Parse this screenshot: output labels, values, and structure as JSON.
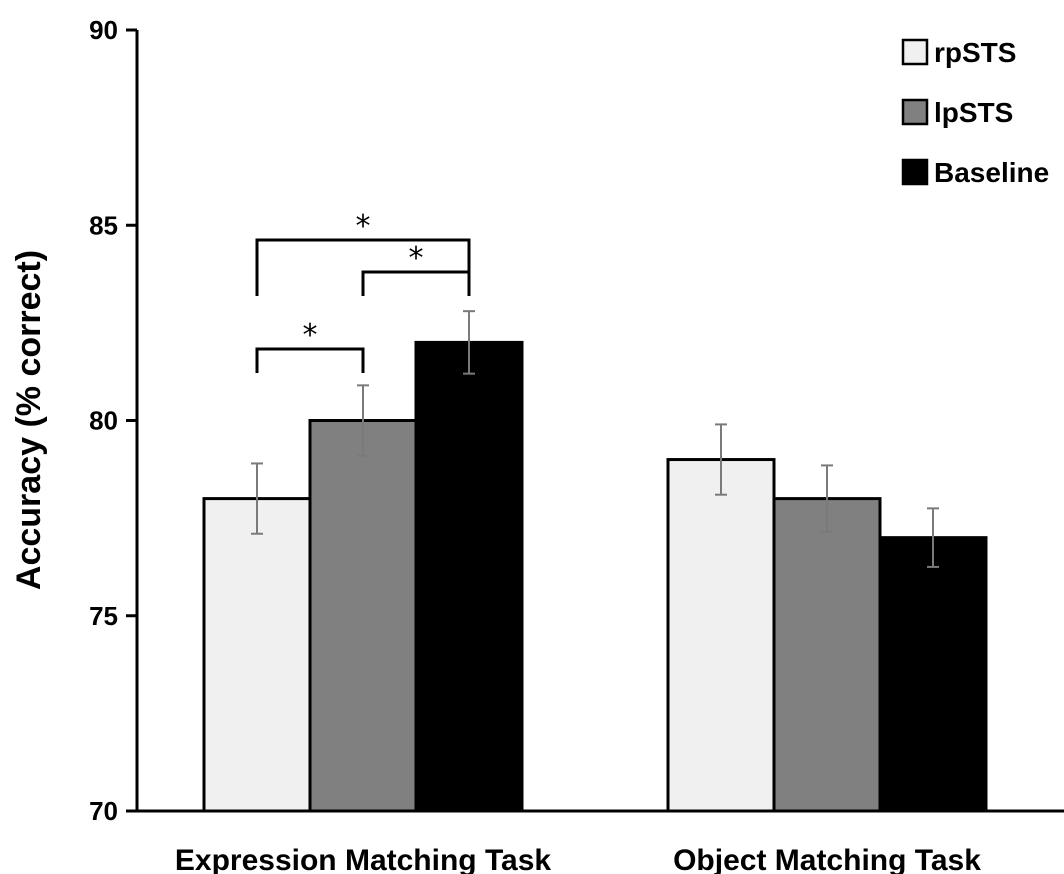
{
  "chart_data": {
    "type": "bar",
    "categories": [
      "Expression Matching Task",
      "Object Matching Task"
    ],
    "series": [
      {
        "name": "rpSTS",
        "color": "#f0f0f0",
        "values": [
          78,
          79
        ],
        "error": [
          0.9,
          0.9
        ]
      },
      {
        "name": "lpSTS",
        "color": "#808080",
        "values": [
          80,
          78
        ],
        "error": [
          0.9,
          0.85
        ]
      },
      {
        "name": "Baseline",
        "color": "#000000",
        "values": [
          82,
          77
        ],
        "error": [
          0.8,
          0.75
        ]
      }
    ],
    "ylabel": "Accuracy (% correct)",
    "ylim": [
      70,
      90
    ],
    "yticks": [
      70,
      75,
      80,
      85,
      90
    ],
    "grid": false,
    "legend_position": "top-right",
    "significance": [
      {
        "category": "Expression Matching Task",
        "from": "rpSTS",
        "to": "lpSTS",
        "label": "*"
      },
      {
        "category": "Expression Matching Task",
        "from": "lpSTS",
        "to": "Baseline",
        "label": "*"
      },
      {
        "category": "Expression Matching Task",
        "from": "rpSTS",
        "to": "Baseline",
        "label": "*"
      }
    ]
  }
}
